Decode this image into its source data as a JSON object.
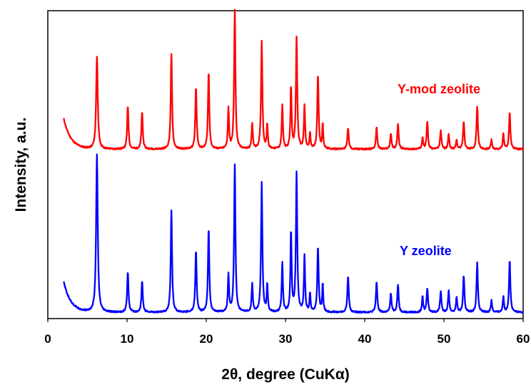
{
  "chart_data": {
    "type": "line",
    "xlabel": "2θ, degree (CuKα)",
    "ylabel": "Intensity, a.u.",
    "xlim": [
      0,
      60
    ],
    "x_ticks": [
      "0",
      "10",
      "20",
      "30",
      "40",
      "50",
      "60"
    ],
    "ylim": [
      0,
      100
    ],
    "grid": false,
    "legend": "none",
    "baseline_noise": 0.5,
    "series": [
      {
        "name": "Y-mod zeolite",
        "color": "#ff0000",
        "baseline": 55,
        "start": [
          2,
          10
        ],
        "x_range": [
          2,
          60
        ],
        "peaks": [
          [
            6.2,
            30,
            0.12
          ],
          [
            10.1,
            14,
            0.1
          ],
          [
            11.9,
            12,
            0.1
          ],
          [
            15.6,
            31,
            0.1
          ],
          [
            18.7,
            20,
            0.1
          ],
          [
            20.3,
            25,
            0.1
          ],
          [
            22.8,
            13,
            0.09
          ],
          [
            23.6,
            45,
            0.1
          ],
          [
            25.8,
            8,
            0.09
          ],
          [
            27.0,
            35,
            0.1
          ],
          [
            27.7,
            8,
            0.08
          ],
          [
            29.6,
            14,
            0.09
          ],
          [
            30.7,
            20,
            0.09
          ],
          [
            31.4,
            36,
            0.1
          ],
          [
            32.4,
            14,
            0.09
          ],
          [
            33.1,
            5,
            0.08
          ],
          [
            34.1,
            24,
            0.1
          ],
          [
            34.7,
            8,
            0.08
          ],
          [
            37.9,
            7,
            0.1
          ],
          [
            41.5,
            7,
            0.1
          ],
          [
            43.3,
            5,
            0.1
          ],
          [
            44.2,
            8,
            0.1
          ],
          [
            47.3,
            4,
            0.09
          ],
          [
            47.9,
            9,
            0.1
          ],
          [
            49.6,
            6,
            0.1
          ],
          [
            50.6,
            5,
            0.09
          ],
          [
            51.6,
            3,
            0.09
          ],
          [
            52.5,
            9,
            0.1
          ],
          [
            54.2,
            14,
            0.1
          ],
          [
            56.0,
            3,
            0.09
          ],
          [
            57.5,
            5,
            0.09
          ],
          [
            58.3,
            12,
            0.1
          ]
        ]
      },
      {
        "name": "Y zeolite",
        "color": "#0000ff",
        "baseline": 2,
        "start": [
          2,
          10
        ],
        "x_range": [
          2,
          60
        ],
        "peaks": [
          [
            6.2,
            51,
            0.12
          ],
          [
            10.1,
            13,
            0.1
          ],
          [
            11.9,
            10,
            0.1
          ],
          [
            15.6,
            33,
            0.1
          ],
          [
            18.7,
            20,
            0.1
          ],
          [
            20.3,
            27,
            0.1
          ],
          [
            22.8,
            12,
            0.09
          ],
          [
            23.6,
            48,
            0.1
          ],
          [
            25.8,
            9,
            0.09
          ],
          [
            27.0,
            42,
            0.1
          ],
          [
            27.7,
            9,
            0.08
          ],
          [
            29.6,
            16,
            0.09
          ],
          [
            30.7,
            26,
            0.09
          ],
          [
            31.4,
            45,
            0.1
          ],
          [
            32.4,
            18,
            0.09
          ],
          [
            33.1,
            6,
            0.08
          ],
          [
            34.1,
            21,
            0.1
          ],
          [
            34.7,
            9,
            0.08
          ],
          [
            37.9,
            12,
            0.1
          ],
          [
            41.5,
            10,
            0.1
          ],
          [
            43.3,
            6,
            0.1
          ],
          [
            44.2,
            9,
            0.1
          ],
          [
            47.3,
            5,
            0.09
          ],
          [
            47.9,
            8,
            0.1
          ],
          [
            49.6,
            7,
            0.1
          ],
          [
            50.6,
            7,
            0.09
          ],
          [
            51.6,
            5,
            0.09
          ],
          [
            52.5,
            12,
            0.1
          ],
          [
            54.2,
            16,
            0.1
          ],
          [
            56.0,
            4,
            0.09
          ],
          [
            57.5,
            5,
            0.09
          ],
          [
            58.3,
            17,
            0.1
          ]
        ]
      }
    ]
  }
}
